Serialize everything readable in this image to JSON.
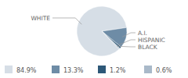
{
  "chart_data": {
    "type": "pie",
    "categories": [
      "WHITE",
      "A.I.",
      "HISPANIC",
      "BLACK"
    ],
    "values": [
      84.9,
      13.3,
      1.2,
      0.6
    ],
    "value_labels": [
      "84.9%",
      "13.3%",
      "1.2%",
      "0.6%"
    ],
    "colors": [
      "#d6dee6",
      "#6e8ca6",
      "#2d5878",
      "#a9b9c9"
    ],
    "legend": "bottom"
  }
}
